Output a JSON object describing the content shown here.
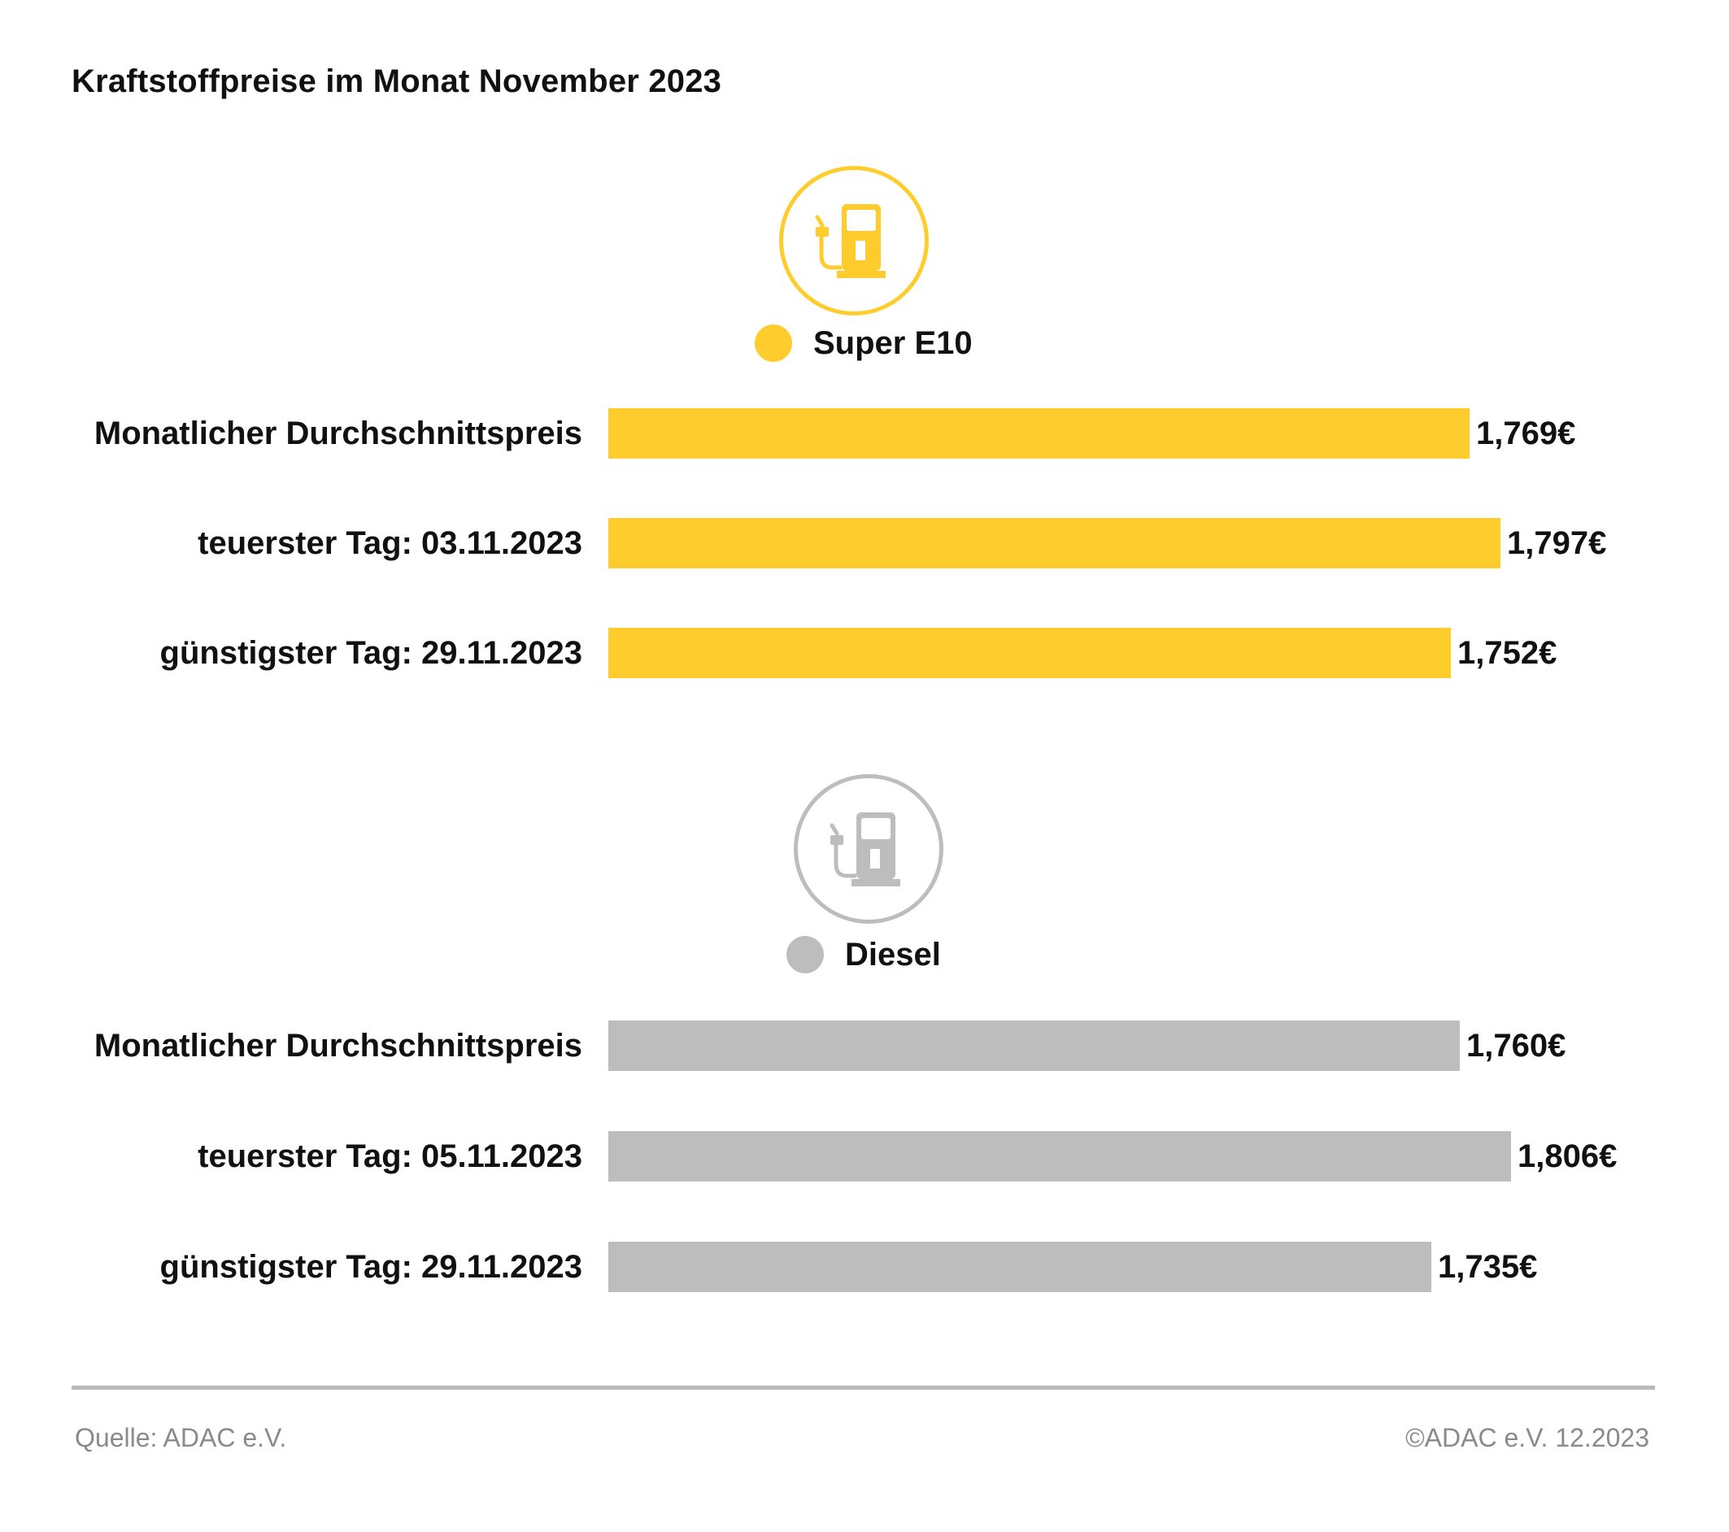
{
  "header": {
    "title": "Kraftstoffpreise im Monat November 2023"
  },
  "chart_data": [
    {
      "type": "bar",
      "orientation": "horizontal",
      "title": "Super E10",
      "icon": "fuel-pump-icon",
      "color": "#FFCC2E",
      "categories": [
        "Monatlicher Durchschnittspreis",
        "teuerster Tag: 03.11.2023",
        "günstigster Tag: 29.11.2023"
      ],
      "values": [
        1.769,
        1.797,
        1.752
      ],
      "value_labels": [
        "1,769€",
        "1,797€",
        "1,752€"
      ]
    },
    {
      "type": "bar",
      "orientation": "horizontal",
      "title": "Diesel",
      "icon": "fuel-pump-icon",
      "color": "#BDBDBD",
      "categories": [
        "Monatlicher Durchschnittspreis",
        "teuerster Tag: 05.11.2023",
        "günstigster Tag: 29.11.2023"
      ],
      "values": [
        1.76,
        1.806,
        1.735
      ],
      "value_labels": [
        "1,760€",
        "1,806€",
        "1,735€"
      ]
    }
  ],
  "footer": {
    "source": "Quelle: ADAC e.V.",
    "copyright": "©ADAC e.V. 12.2023"
  }
}
